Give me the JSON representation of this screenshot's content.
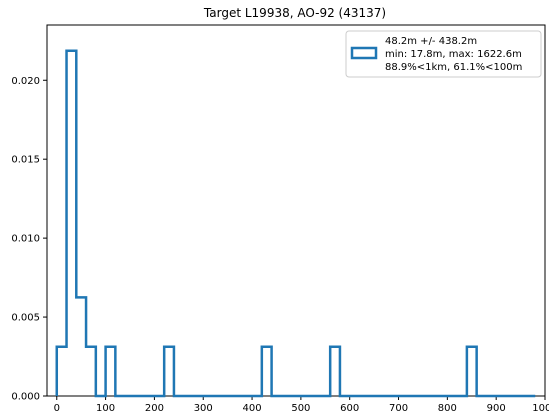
{
  "chart_data": {
    "type": "histogram-step",
    "title": "Target L19938, AO-92 (43137)",
    "xlabel": "",
    "ylabel": "",
    "xlim": [
      -20,
      1000
    ],
    "ylim": [
      0,
      0.0235
    ],
    "x_ticks": [
      0,
      100,
      200,
      300,
      400,
      500,
      600,
      700,
      800,
      900,
      1000
    ],
    "y_ticks": [
      0.0,
      0.005,
      0.01,
      0.015,
      0.02
    ],
    "y_tick_labels": [
      "0.000",
      "0.005",
      "0.010",
      "0.015",
      "0.020"
    ],
    "grid": false,
    "legend_position": "top-right",
    "legend_lines": [
      "48.2m +/- 438.2m",
      "min: 17.8m, max: 1622.6m",
      "88.9%<1km, 61.1%<100m"
    ],
    "series": [
      {
        "color": "#1f77b4",
        "bin_edges": [
          0,
          20,
          40,
          60,
          80,
          100,
          120,
          140,
          160,
          180,
          200,
          220,
          240,
          260,
          280,
          300,
          320,
          340,
          360,
          380,
          400,
          420,
          440,
          460,
          480,
          500,
          520,
          540,
          560,
          580,
          600,
          620,
          640,
          660,
          680,
          700,
          720,
          740,
          760,
          780,
          800,
          820,
          840,
          860,
          880,
          900,
          920,
          940,
          960,
          980
        ],
        "values": [
          0.00312,
          0.02187,
          0.00625,
          0.00312,
          0,
          0.00312,
          0,
          0,
          0,
          0,
          0,
          0.00312,
          0,
          0,
          0,
          0,
          0,
          0,
          0,
          0,
          0,
          0.00312,
          0,
          0,
          0,
          0,
          0,
          0,
          0.00312,
          0,
          0,
          0,
          0,
          0,
          0,
          0,
          0,
          0,
          0,
          0,
          0,
          0,
          0.00312,
          0,
          0,
          0,
          0,
          0,
          0
        ]
      }
    ]
  }
}
